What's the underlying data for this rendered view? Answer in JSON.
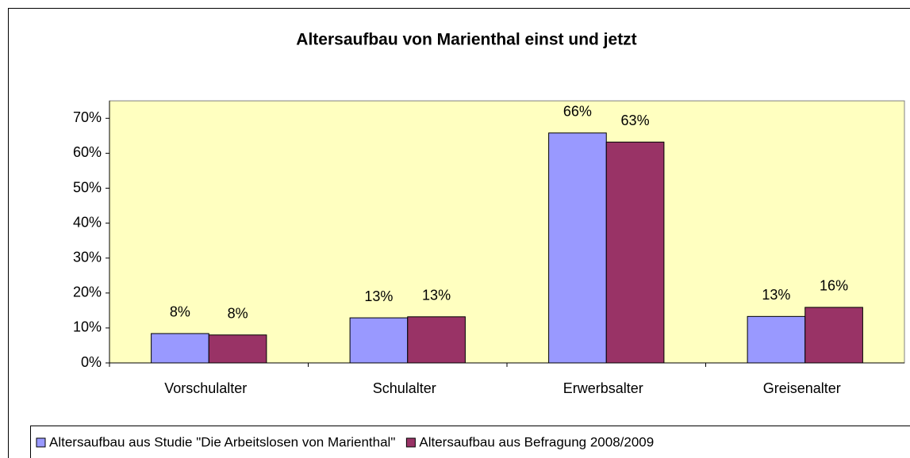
{
  "chart_data": {
    "type": "bar",
    "title": "Altersaufbau von Marienthal einst und jetzt",
    "categories": [
      "Vorschulalter",
      "Schulalter",
      "Erwerbsalter",
      "Greisenalter"
    ],
    "series": [
      {
        "name": "Altersaufbau aus Studie \"Die Arbeitslosen von Marienthal\"",
        "color": "#9999ff",
        "values": [
          8.4,
          12.9,
          65.8,
          13.3
        ],
        "value_labels": [
          "8%",
          "13%",
          "66%",
          "13%"
        ]
      },
      {
        "name": "Altersaufbau aus Befragung 2008/2009",
        "color": "#993366",
        "values": [
          8.0,
          13.2,
          63.2,
          15.9
        ],
        "value_labels": [
          "8%",
          "13%",
          "63%",
          "16%"
        ]
      }
    ],
    "ylim": [
      0,
      75
    ],
    "yticks": [
      {
        "value": 0,
        "label": "0%"
      },
      {
        "value": 10,
        "label": "10%"
      },
      {
        "value": 20,
        "label": "20%"
      },
      {
        "value": 30,
        "label": "30%"
      },
      {
        "value": 40,
        "label": "40%"
      },
      {
        "value": 50,
        "label": "50%"
      },
      {
        "value": 60,
        "label": "60%"
      },
      {
        "value": 70,
        "label": "70%"
      }
    ],
    "plot_background": "#ffffc0",
    "legend": "bottom"
  }
}
